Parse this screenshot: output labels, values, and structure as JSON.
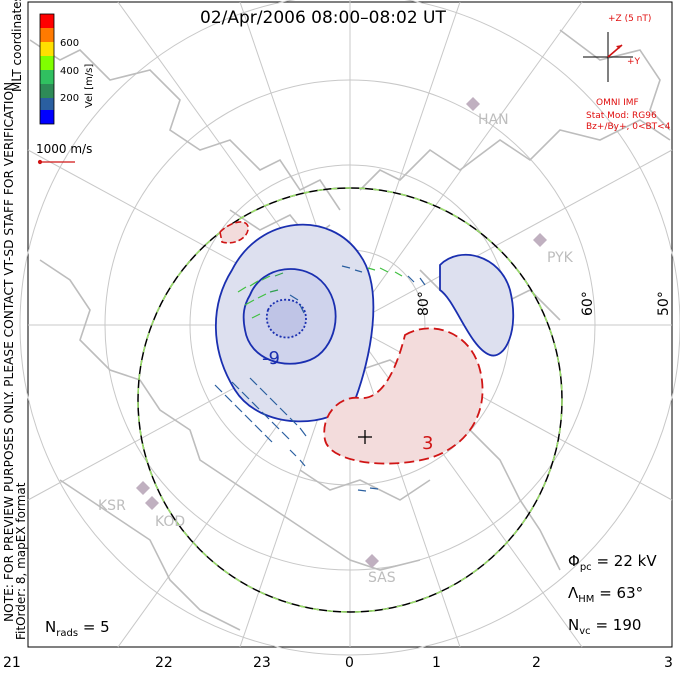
{
  "title": "02/Apr/2006 08:00–08:02 UT",
  "colorbar": {
    "label": "Vel [m/s]",
    "ticks": [
      "600",
      "400",
      "200"
    ],
    "colors": [
      "#ff0000",
      "#ff7a00",
      "#ffe000",
      "#80ff00",
      "#30c060",
      "#2e8b57",
      "#2a5fa0",
      "#0000ff"
    ]
  },
  "coord_label": "MLT coordinates",
  "vector_scale": "1000 m/s",
  "notice": "NOTE: FOR PREVIEW PURPOSES ONLY. PLEASE CONTACT VT-SD STAFF FOR VERIFICATION.",
  "fit_info": "FitOrder: 8, mapEX format",
  "imf": {
    "z_label": "+Z (5 nT)",
    "y_label": "+Y",
    "source": "OMNI IMF",
    "stat_mod": "Stat Mod: RG96",
    "stat_cond": "Bz+/By+, 0<BT<4"
  },
  "contours": {
    "neg_label": "-9",
    "pos_label": "3"
  },
  "stations": [
    "HAN",
    "PYK",
    "KSR",
    "KOD",
    "SAS"
  ],
  "latitudes": [
    "80°",
    "60°",
    "50°"
  ],
  "mlt_ticks": [
    "21",
    "22",
    "23",
    "0",
    "1",
    "2",
    "3"
  ],
  "stats": {
    "phi_pc": "Φ",
    "phi_sub": "pc",
    "phi_val": "= 22 kV",
    "lambda": "Λ",
    "lambda_sub": "HM",
    "lambda_val": "= 63°",
    "nvc": "N",
    "nvc_sub": "vc",
    "nvc_val": "= 190",
    "nrads": "N",
    "nrads_sub": "rads",
    "nrads_val": "= 5"
  },
  "colors": {
    "negative": "#1a2fb0",
    "positive": "#d01515",
    "boundary_dash": "#9be06a"
  }
}
